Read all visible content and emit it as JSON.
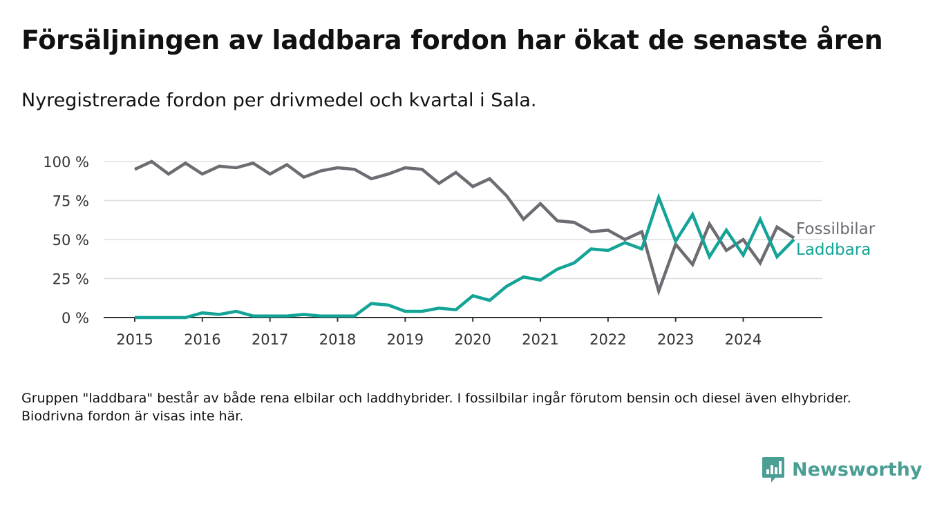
{
  "title": "Försäljningen av laddbara fordon har ökat de senaste åren",
  "subtitle": "Nyregistrerade fordon per drivmedel och kvartal i Sala.",
  "footnote": "Gruppen \"laddbara\" består av både rena elbilar och laddhybrider. I fossilbilar ingår förutom bensin och diesel även elhybrider. Biodrivna fordon är visas inte här.",
  "brand": {
    "name": "Newsworthy",
    "logo_icon": "newsworthy-logo-icon",
    "color": "#4a9e93"
  },
  "chart_data": {
    "type": "line",
    "x": [
      2015,
      2015.25,
      2015.5,
      2015.75,
      2016,
      2016.25,
      2016.5,
      2016.75,
      2017,
      2017.25,
      2017.5,
      2017.75,
      2018,
      2018.25,
      2018.5,
      2018.75,
      2019,
      2019.25,
      2019.5,
      2019.75,
      2020,
      2020.25,
      2020.5,
      2020.75,
      2021,
      2021.25,
      2021.5,
      2021.75,
      2022,
      2022.25,
      2022.5,
      2022.75,
      2023,
      2023.25,
      2023.5,
      2023.75,
      2024,
      2024.25,
      2024.5,
      2024.75
    ],
    "series": [
      {
        "name": "Fossilbilar",
        "color": "#6e6b72",
        "values": [
          95,
          100,
          92,
          99,
          92,
          97,
          96,
          99,
          92,
          98,
          90,
          94,
          96,
          95,
          89,
          92,
          96,
          95,
          86,
          93,
          84,
          89,
          78,
          63,
          73,
          62,
          61,
          55,
          56,
          50,
          55,
          17,
          47,
          34,
          60,
          43,
          50,
          35,
          58,
          51
        ]
      },
      {
        "name": "Laddbara",
        "color": "#14a497",
        "values": [
          0,
          0,
          0,
          0,
          3,
          2,
          4,
          1,
          1,
          1,
          2,
          1,
          1,
          1,
          9,
          8,
          4,
          4,
          6,
          5,
          14,
          11,
          20,
          26,
          24,
          31,
          35,
          44,
          43,
          48,
          44,
          77,
          49,
          66,
          39,
          56,
          40,
          63,
          39,
          50
        ]
      }
    ],
    "tick_labels_x": [
      "2015",
      "2016",
      "2017",
      "2018",
      "2019",
      "2020",
      "2021",
      "2022",
      "2023",
      "2024"
    ],
    "tick_values_x": [
      2015,
      2016,
      2017,
      2018,
      2019,
      2020,
      2021,
      2022,
      2023,
      2024
    ],
    "tick_labels_y": [
      "0 %",
      "25 %",
      "50 %",
      "75 %",
      "100 %"
    ],
    "tick_values_y": [
      0,
      25,
      50,
      75,
      100
    ],
    "xlim": [
      2014.54,
      2025.17
    ],
    "ylim": [
      0,
      100
    ],
    "xlabel": "",
    "ylabel": "",
    "grid": true,
    "legend": "end-of-line labels, right",
    "axis_color": "#333333",
    "grid_color": "#dddddd"
  }
}
